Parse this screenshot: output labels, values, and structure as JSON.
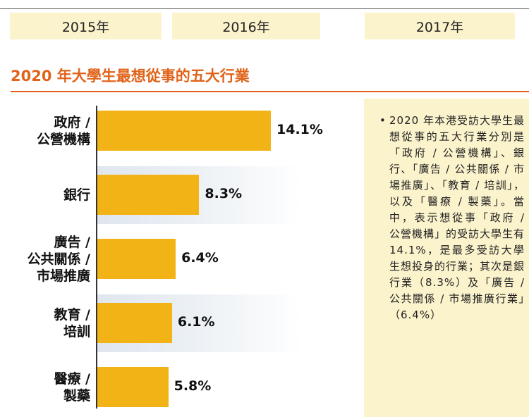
{
  "tabs": [
    "2015年",
    "2016年",
    "2017年"
  ],
  "title": "2020 年大學生最想從事的五大行業",
  "chart_data": {
    "type": "bar",
    "orientation": "horizontal",
    "title": "2020 年大學生最想從事的五大行業",
    "categories": [
      "政府 / 公營機構",
      "銀行",
      "廣告 / 公共關係 / 市場推廣",
      "教育 / 培訓",
      "醫療 / 製藥"
    ],
    "category_lines": [
      [
        "政府 /",
        "公營機構"
      ],
      [
        "銀行"
      ],
      [
        "廣告 /",
        "公共關係 /",
        "市場推廣"
      ],
      [
        "教育 /",
        "培訓"
      ],
      [
        "醫療 /",
        "製藥"
      ]
    ],
    "values": [
      14.1,
      8.3,
      6.4,
      6.1,
      5.8
    ],
    "value_labels": [
      "14.1%",
      "8.3%",
      "6.4%",
      "6.1%",
      "5.8%"
    ],
    "unit": "%",
    "bar_color": "#f2b316"
  },
  "note": {
    "bullet": "•",
    "text": "2020 年本港受訪大學生最想從事的五大行業分別是「政府 / 公營機構」、銀行、「廣告 / 公共關係 / 市場推廣」、「教育 / 培訓」，以及「醫療 / 製藥」。當中，表示想從事「政府 / 公營機構」的受訪大學生有 14.1%，是最多受訪大學生想投身的行業；其次是銀行業（8.3%）及「廣告 / 公共關係 / 市場推廣行業」（6.4%）"
  },
  "colors": {
    "accent": "#e0631a",
    "bar": "#f2b316",
    "note_bg": "#fbf3cc"
  }
}
